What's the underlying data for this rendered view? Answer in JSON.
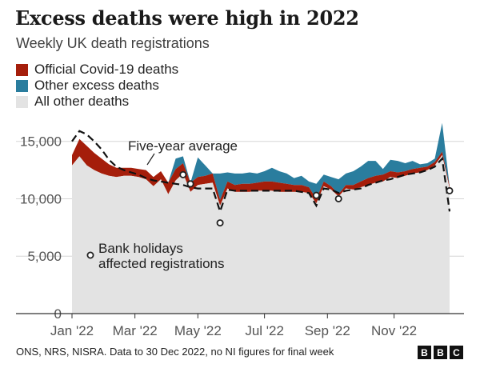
{
  "title": "Excess deaths were high in 2022",
  "subtitle": "Weekly UK death registrations",
  "legend": [
    {
      "label": "Official Covid-19 deaths",
      "color": "#a51e0b"
    },
    {
      "label": "Other excess deaths",
      "color": "#2a7d9e"
    },
    {
      "label": "All other deaths",
      "color": "#e3e3e3"
    }
  ],
  "annotations": {
    "five_year": "Five-year average",
    "bank_holidays_line1": "Bank holidays",
    "bank_holidays_line2": "affected registrations"
  },
  "source": "ONS, NRS, NISRA. Data to 30 Dec 2022, no NI figures for final week",
  "logo": [
    "B",
    "B",
    "C"
  ],
  "chart_data": {
    "type": "area",
    "x_unit": "week of 2022",
    "weeks": [
      1,
      2,
      3,
      4,
      5,
      6,
      7,
      8,
      9,
      10,
      11,
      12,
      13,
      14,
      15,
      16,
      17,
      18,
      19,
      20,
      21,
      22,
      23,
      24,
      25,
      26,
      27,
      28,
      29,
      30,
      31,
      32,
      33,
      34,
      35,
      36,
      37,
      38,
      39,
      40,
      41,
      42,
      43,
      44,
      45,
      46,
      47,
      48,
      49,
      50,
      51,
      52
    ],
    "series": [
      {
        "name": "All other deaths",
        "color": "#e3e3e3",
        "values": [
          12900,
          13700,
          12900,
          12500,
          12200,
          12000,
          11900,
          12000,
          12000,
          11900,
          11700,
          11100,
          11700,
          10400,
          11600,
          12200,
          10600,
          11200,
          11300,
          11400,
          9400,
          10900,
          10600,
          10600,
          10600,
          10700,
          10700,
          10700,
          10600,
          10600,
          10600,
          10600,
          10500,
          9600,
          11100,
          10800,
          10200,
          10900,
          10800,
          11000,
          11200,
          11400,
          11500,
          11900,
          11800,
          12000,
          12200,
          12300,
          12500,
          12900,
          13800,
          10900
        ]
      },
      {
        "name": "Official Covid-19 deaths",
        "color": "#a51e0b",
        "values": [
          900,
          1500,
          1700,
          1500,
          1300,
          1000,
          800,
          700,
          700,
          700,
          800,
          800,
          700,
          1000,
          1000,
          900,
          800,
          700,
          700,
          800,
          500,
          600,
          600,
          700,
          700,
          700,
          800,
          800,
          800,
          700,
          600,
          600,
          500,
          400,
          400,
          300,
          200,
          300,
          400,
          500,
          600,
          600,
          600,
          500,
          500,
          400,
          400,
          400,
          300,
          300,
          300,
          200
        ]
      },
      {
        "name": "Other excess deaths",
        "color": "#2a7d9e",
        "values": [
          0,
          0,
          0,
          0,
          0,
          0,
          0,
          0,
          0,
          0,
          0,
          0,
          0,
          0,
          900,
          600,
          0,
          1700,
          900,
          0,
          2300,
          800,
          1000,
          900,
          1000,
          800,
          900,
          1200,
          1000,
          900,
          600,
          800,
          500,
          1300,
          600,
          800,
          1300,
          1000,
          1200,
          1300,
          1500,
          1300,
          500,
          1000,
          1000,
          700,
          700,
          300,
          300,
          300,
          2500,
          0
        ]
      }
    ],
    "five_year_average": [
      15000,
      15900,
      15600,
      15000,
      14300,
      13400,
      12800,
      12500,
      12300,
      12100,
      11800,
      11600,
      11500,
      11400,
      11300,
      11200,
      11000,
      10900,
      10900,
      10900,
      8900,
      10800,
      10700,
      10700,
      10700,
      10700,
      10700,
      10700,
      10700,
      10700,
      10700,
      10600,
      10500,
      9400,
      10900,
      10800,
      10500,
      10700,
      10800,
      10900,
      11200,
      11400,
      11600,
      11700,
      11900,
      12100,
      12200,
      12300,
      12500,
      12800,
      13500,
      8900
    ],
    "bank_holiday_weeks": [
      16,
      17,
      21,
      34,
      37,
      52
    ],
    "bank_holiday_values": [
      12100,
      11300,
      7900,
      10300,
      10000,
      10700
    ],
    "y_ticks": [
      0,
      5000,
      10000,
      15000
    ],
    "y_tick_labels": [
      "0",
      "5,000",
      "10,000",
      "15,000"
    ],
    "x_tick_labels": [
      {
        "label": "Jan '22",
        "week": 1
      },
      {
        "label": "Mar '22",
        "week": 9.5
      },
      {
        "label": "May '22",
        "week": 18
      },
      {
        "label": "Jul '22",
        "week": 27
      },
      {
        "label": "Sep '22",
        "week": 35.5
      },
      {
        "label": "Nov '22",
        "week": 44.5
      }
    ],
    "ylim": [
      0,
      17000
    ],
    "grid": true,
    "legend_placement": "top-left"
  }
}
